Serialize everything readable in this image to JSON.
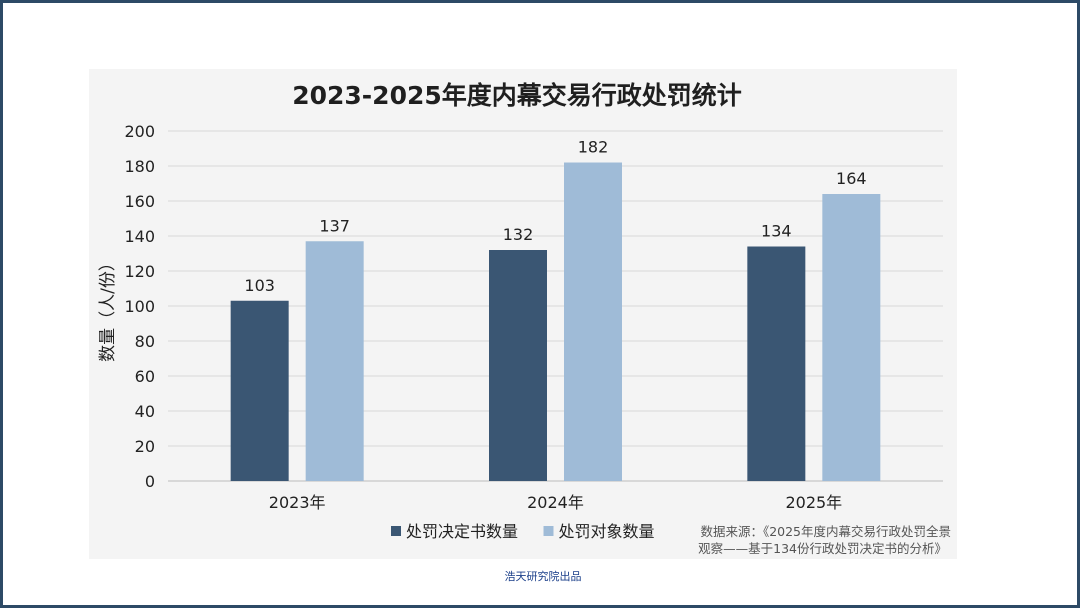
{
  "chart_data": {
    "type": "bar",
    "title": "2023-2025年度内幕交易行政处罚统计",
    "ylabel": "数量（人/份）",
    "xlabel": "",
    "categories": [
      "2023年",
      "2024年",
      "2025年"
    ],
    "series": [
      {
        "name": "处罚决定书数量",
        "values": [
          103,
          132,
          134
        ],
        "color": "#3a5673"
      },
      {
        "name": "处罚对象数量",
        "values": [
          137,
          182,
          164
        ],
        "color": "#9fbbd7"
      }
    ],
    "ylim": [
      0,
      200
    ],
    "yticks": [
      0,
      20,
      40,
      60,
      80,
      100,
      120,
      140,
      160,
      180,
      200
    ],
    "grid": true,
    "legend_position": "bottom-center"
  },
  "source_line1": "数据来源：《2025年度内幕交易行政处罚全景",
  "source_line2": "观察——基于134份行政处罚决定书的分析》",
  "footer_text": "浩天研究院出品"
}
